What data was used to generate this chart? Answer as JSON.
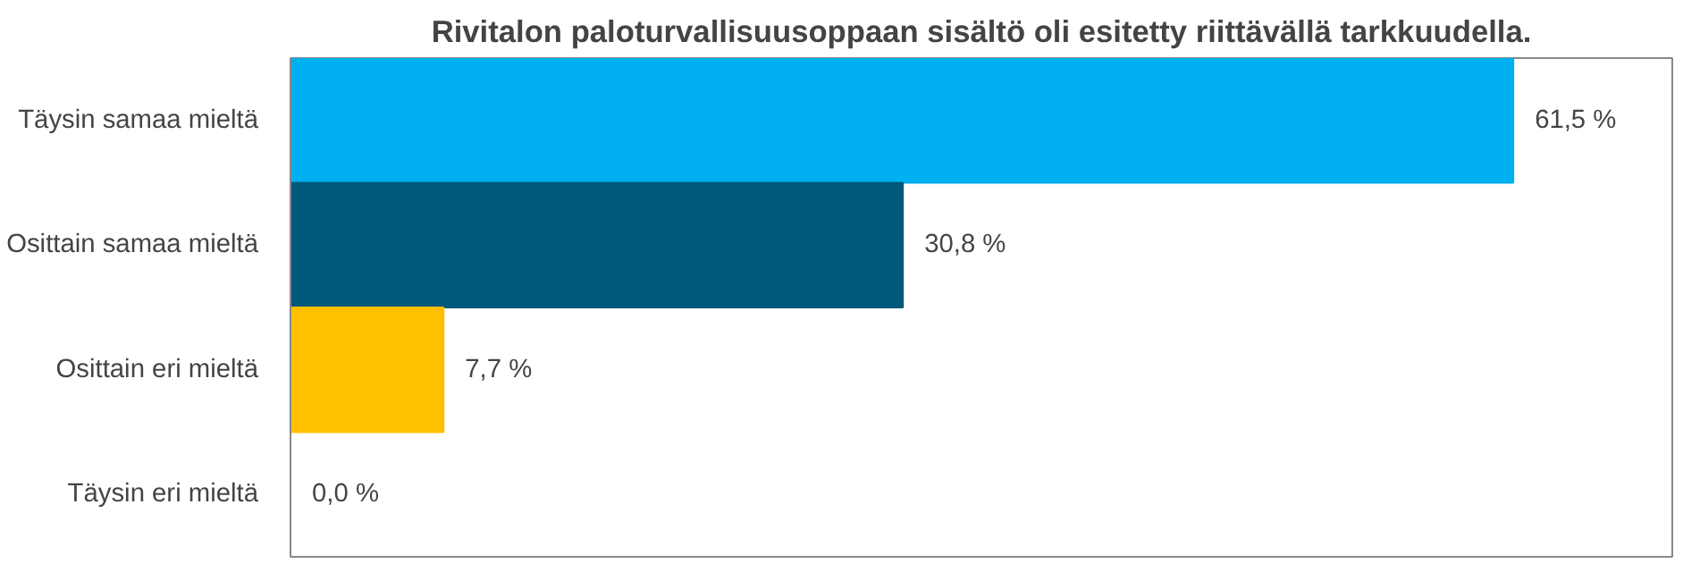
{
  "chart_data": {
    "type": "bar",
    "orientation": "horizontal",
    "title": "Rivitalon paloturvallisuusoppaan sisältö oli esitetty riittävällä tarkkuudella.",
    "categories": [
      "Täysin samaa mieltä",
      "Osittain samaa mieltä",
      "Osittain eri mieltä",
      "Täysin eri mieltä"
    ],
    "values": [
      61.5,
      30.8,
      7.7,
      0.0
    ],
    "colors": [
      "#00b0f0",
      "#00587a",
      "#ffc000",
      "#a6a6a6"
    ],
    "value_labels": [
      "61,5 %",
      "30,8 %",
      "7,7 %",
      "0,0 %"
    ],
    "grid": false
  }
}
